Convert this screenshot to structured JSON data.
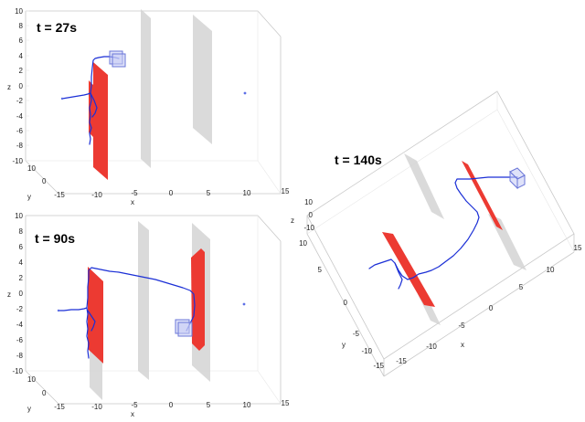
{
  "panels": [
    {
      "id": "p1",
      "title": "t = 27s",
      "x_axis_label": "x",
      "y_axis_label": "y",
      "z_axis_label": "z",
      "x_ticks": [
        "-15",
        "-10",
        "-5",
        "0",
        "5",
        "10",
        "15"
      ],
      "y_ticks": [
        "10",
        "0"
      ],
      "z_ticks": [
        "10",
        "8",
        "6",
        "4",
        "2",
        "0",
        "-2",
        "-4",
        "-6",
        "-8",
        "-10"
      ]
    },
    {
      "id": "p2",
      "title": "t = 90s",
      "x_axis_label": "x",
      "y_axis_label": "y",
      "z_axis_label": "z",
      "x_ticks": [
        "-15",
        "-10",
        "-5",
        "0",
        "5",
        "10",
        "15"
      ],
      "y_ticks": [
        "10",
        "0"
      ],
      "z_ticks": [
        "10",
        "8",
        "6",
        "4",
        "2",
        "0",
        "-2",
        "-4",
        "-6",
        "-8",
        "-10"
      ]
    },
    {
      "id": "p3",
      "title": "t = 140s",
      "x_axis_label": "x",
      "y_axis_label": "y",
      "z_axis_label": "z",
      "x_ticks": [
        "-15",
        "-10",
        "-5",
        "0",
        "5",
        "10",
        "15"
      ],
      "y_ticks": [
        "10",
        "5",
        "0",
        "-5",
        "-10",
        "-15"
      ],
      "z_ticks": [
        "10",
        "0",
        "-10"
      ]
    }
  ],
  "colors": {
    "trajectory": "#1b2fd6",
    "red_wall": "#ec3a32",
    "gray_wall": "#d4d4d4",
    "drone": "#6a76d8"
  }
}
